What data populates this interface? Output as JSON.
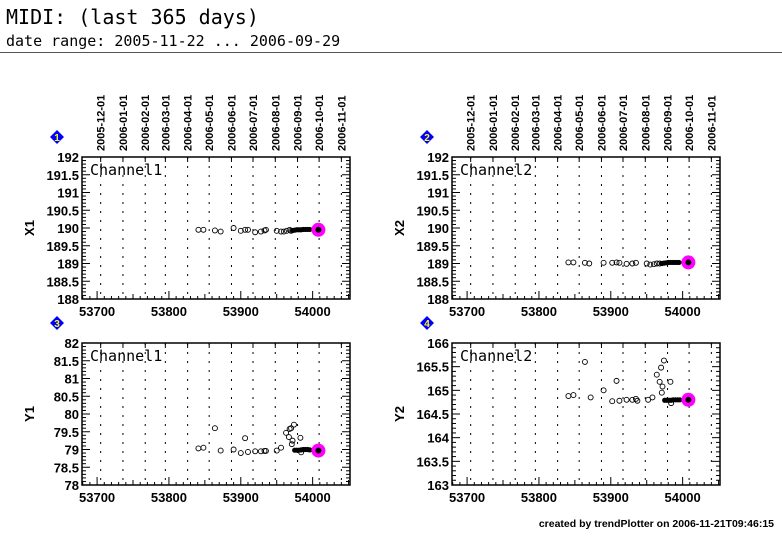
{
  "header": {
    "title": "MIDI: (last 365 days)",
    "subtitle": "date range: 2005-11-22 ... 2006-09-29"
  },
  "footer": "created by trendPlotter on 2006-11-21T09:46:15",
  "colors": {
    "highlight": "#ff00ff",
    "badge": "#0000ff",
    "badge_text": "#ffff00"
  },
  "chart_data": {
    "type": "scatter",
    "xlim": [
      53679,
      54052
    ],
    "x_ticks": [
      53700,
      53800,
      53900,
      54000
    ],
    "date_ticks": [
      {
        "label": "2005-12-01",
        "mjd": 53705
      },
      {
        "label": "2006-01-01",
        "mjd": 53736
      },
      {
        "label": "2006-02-01",
        "mjd": 53767
      },
      {
        "label": "2006-03-01",
        "mjd": 53795
      },
      {
        "label": "2006-04-01",
        "mjd": 53826
      },
      {
        "label": "2006-05-01",
        "mjd": 53856
      },
      {
        "label": "2006-06-01",
        "mjd": 53887
      },
      {
        "label": "2006-07-01",
        "mjd": 53917
      },
      {
        "label": "2006-08-01",
        "mjd": 53948
      },
      {
        "label": "2006-09-01",
        "mjd": 53979
      },
      {
        "label": "2006-10-01",
        "mjd": 54009
      },
      {
        "label": "2006-11-01",
        "mjd": 54040
      }
    ],
    "panels": [
      {
        "badge": "1",
        "ylabel": "X1",
        "channel": "Channel1",
        "ylim": [
          188,
          192
        ],
        "y_ticks": [
          "192",
          "191.5",
          "191",
          "190.5",
          "190",
          "189.5",
          "189",
          "188.5",
          "188"
        ],
        "points": [
          [
            53841,
            189.95
          ],
          [
            53848,
            189.95
          ],
          [
            53864,
            189.93
          ],
          [
            53872,
            189.9
          ],
          [
            53890,
            190.0
          ],
          [
            53900,
            189.92
          ],
          [
            53906,
            189.95
          ],
          [
            53910,
            189.95
          ],
          [
            53920,
            189.88
          ],
          [
            53928,
            189.9
          ],
          [
            53933,
            189.93
          ],
          [
            53935,
            189.95
          ],
          [
            53950,
            189.92
          ],
          [
            53956,
            189.9
          ],
          [
            53960,
            189.9
          ],
          [
            53964,
            189.92
          ],
          [
            53968,
            189.95
          ],
          [
            53970,
            189.92
          ]
        ],
        "recent": [
          [
            53972,
            189.93
          ],
          [
            53975,
            189.94
          ],
          [
            53978,
            189.95
          ],
          [
            53981,
            189.95
          ],
          [
            53984,
            189.95
          ],
          [
            53987,
            189.96
          ],
          [
            53990,
            189.96
          ],
          [
            53993,
            189.96
          ],
          [
            53996,
            189.96
          ]
        ],
        "current": [
          54008,
          189.95
        ]
      },
      {
        "badge": "2",
        "ylabel": "X2",
        "channel": "Channel2",
        "ylim": [
          188,
          192
        ],
        "y_ticks": [
          "192",
          "191.5",
          "191",
          "190.5",
          "190",
          "189.5",
          "189",
          "188.5",
          "188"
        ],
        "points": [
          [
            53841,
            189.03
          ],
          [
            53848,
            189.03
          ],
          [
            53864,
            189.02
          ],
          [
            53870,
            189.0
          ],
          [
            53890,
            189.02
          ],
          [
            53902,
            189.02
          ],
          [
            53908,
            189.03
          ],
          [
            53912,
            189.02
          ],
          [
            53922,
            188.99
          ],
          [
            53930,
            189.0
          ],
          [
            53935,
            189.02
          ],
          [
            53950,
            189.0
          ],
          [
            53955,
            188.97
          ],
          [
            53960,
            188.98
          ],
          [
            53964,
            189.0
          ],
          [
            53968,
            189.0
          ]
        ],
        "recent": [
          [
            53971,
            189.0
          ],
          [
            53974,
            189.01
          ],
          [
            53977,
            189.02
          ],
          [
            53980,
            189.03
          ],
          [
            53983,
            189.03
          ],
          [
            53986,
            189.03
          ],
          [
            53989,
            189.03
          ],
          [
            53992,
            189.03
          ],
          [
            53995,
            189.03
          ]
        ],
        "current": [
          54008,
          189.03
        ]
      },
      {
        "badge": "3",
        "ylabel": "Y1",
        "channel": "Channel1",
        "ylim": [
          78,
          82
        ],
        "y_ticks": [
          "82",
          "81.5",
          "81",
          "80.5",
          "80",
          "79.5",
          "79",
          "78.5",
          "78"
        ],
        "points": [
          [
            53841,
            79.03
          ],
          [
            53848,
            79.05
          ],
          [
            53864,
            79.6
          ],
          [
            53872,
            78.97
          ],
          [
            53890,
            79.0
          ],
          [
            53900,
            78.9
          ],
          [
            53906,
            79.32
          ],
          [
            53910,
            78.93
          ],
          [
            53920,
            78.95
          ],
          [
            53928,
            78.95
          ],
          [
            53933,
            78.96
          ],
          [
            53935,
            78.96
          ],
          [
            53950,
            78.97
          ],
          [
            53956,
            79.05
          ],
          [
            53963,
            79.47
          ],
          [
            53967,
            79.35
          ],
          [
            53968,
            79.58
          ],
          [
            53970,
            79.6
          ],
          [
            53971,
            79.15
          ],
          [
            53972,
            79.25
          ],
          [
            53974,
            79.7
          ],
          [
            53983,
            79.33
          ],
          [
            53984,
            78.92
          ]
        ],
        "recent": [
          [
            53975,
            78.98
          ],
          [
            53978,
            78.98
          ],
          [
            53981,
            78.98
          ],
          [
            53984,
            78.99
          ],
          [
            53987,
            79.0
          ],
          [
            53990,
            79.0
          ],
          [
            53993,
            79.0
          ],
          [
            53996,
            78.99
          ]
        ],
        "current": [
          54008,
          78.97
        ]
      },
      {
        "badge": "4",
        "ylabel": "Y2",
        "channel": "Channel2",
        "ylim": [
          163,
          166
        ],
        "y_ticks": [
          "166",
          "165.5",
          "165",
          "164.5",
          "164",
          "163.5",
          "163"
        ],
        "points": [
          [
            53841,
            164.88
          ],
          [
            53848,
            164.9
          ],
          [
            53864,
            165.6
          ],
          [
            53872,
            164.85
          ],
          [
            53890,
            165.0
          ],
          [
            53902,
            164.77
          ],
          [
            53908,
            165.2
          ],
          [
            53912,
            164.78
          ],
          [
            53922,
            164.8
          ],
          [
            53930,
            164.8
          ],
          [
            53935,
            164.82
          ],
          [
            53937,
            164.78
          ],
          [
            53952,
            164.8
          ],
          [
            53958,
            164.85
          ],
          [
            53964,
            165.33
          ],
          [
            53968,
            165.18
          ],
          [
            53970,
            165.48
          ],
          [
            53971,
            164.95
          ],
          [
            53972,
            165.08
          ],
          [
            53974,
            165.63
          ],
          [
            53983,
            165.18
          ],
          [
            53984,
            164.73
          ]
        ],
        "recent": [
          [
            53975,
            164.79
          ],
          [
            53978,
            164.79
          ],
          [
            53981,
            164.79
          ],
          [
            53984,
            164.79
          ],
          [
            53987,
            164.8
          ],
          [
            53990,
            164.8
          ],
          [
            53993,
            164.8
          ],
          [
            53996,
            164.8
          ]
        ],
        "current": [
          54008,
          164.8
        ]
      }
    ]
  }
}
